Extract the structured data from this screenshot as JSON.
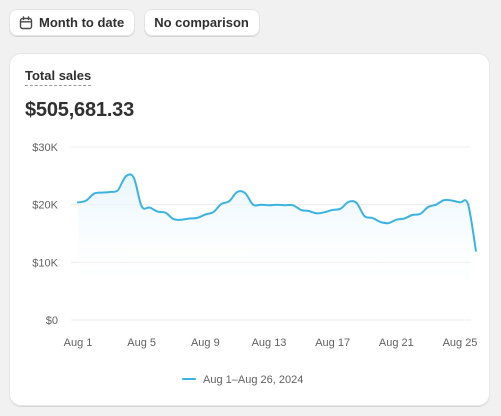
{
  "toolbar": {
    "date_range_label": "Month to date",
    "date_range_icon": "calendar-icon",
    "comparison_label": "No comparison"
  },
  "card": {
    "title": "Total sales",
    "total": "$505,681.33"
  },
  "colors": {
    "line": "#3bb3e0",
    "grid": "#ececec",
    "area_top": "#e6f5fb"
  },
  "chart_data": {
    "type": "area",
    "title": "Total sales",
    "ylim": [
      0,
      30000
    ],
    "y_ticks": [
      {
        "value": 0,
        "label": "$0"
      },
      {
        "value": 10000,
        "label": "$10K"
      },
      {
        "value": 20000,
        "label": "$20K"
      },
      {
        "value": 30000,
        "label": "$30K"
      }
    ],
    "x_ticks": [
      {
        "day": 1,
        "label": "Aug 1"
      },
      {
        "day": 5,
        "label": "Aug 5"
      },
      {
        "day": 9,
        "label": "Aug 9"
      },
      {
        "day": 13,
        "label": "Aug 13"
      },
      {
        "day": 17,
        "label": "Aug 17"
      },
      {
        "day": 21,
        "label": "Aug 21"
      },
      {
        "day": 25,
        "label": "Aug 25"
      }
    ],
    "grid": true,
    "legend_position": "bottom-center",
    "series": [
      {
        "name": "Aug 1–Aug 26, 2024",
        "x": [
          1,
          1.5,
          2,
          2.5,
          3,
          3.5,
          4,
          4.5,
          5,
          5.5,
          6,
          6.5,
          7,
          7.5,
          8,
          8.5,
          9,
          9.5,
          10,
          10.5,
          11,
          11.5,
          12,
          12.5,
          13,
          13.5,
          14,
          14.5,
          15,
          15.5,
          16,
          16.5,
          17,
          17.5,
          18,
          18.5,
          19,
          19.5,
          20,
          20.5,
          21,
          21.5,
          22,
          22.5,
          23,
          23.5,
          24,
          24.5,
          25,
          25.5,
          26
        ],
        "values": [
          20400,
          20700,
          21900,
          22100,
          22200,
          22500,
          24900,
          24700,
          19700,
          19500,
          18800,
          18600,
          17500,
          17400,
          17600,
          17700,
          18300,
          18700,
          20100,
          20600,
          22200,
          22000,
          20000,
          20000,
          19900,
          20000,
          19900,
          19900,
          19100,
          18900,
          18500,
          18700,
          19100,
          19300,
          20500,
          20300,
          18000,
          17700,
          17000,
          16800,
          17400,
          17600,
          18200,
          18400,
          19600,
          20000,
          20800,
          20700,
          20400,
          20100,
          12000
        ]
      }
    ]
  }
}
